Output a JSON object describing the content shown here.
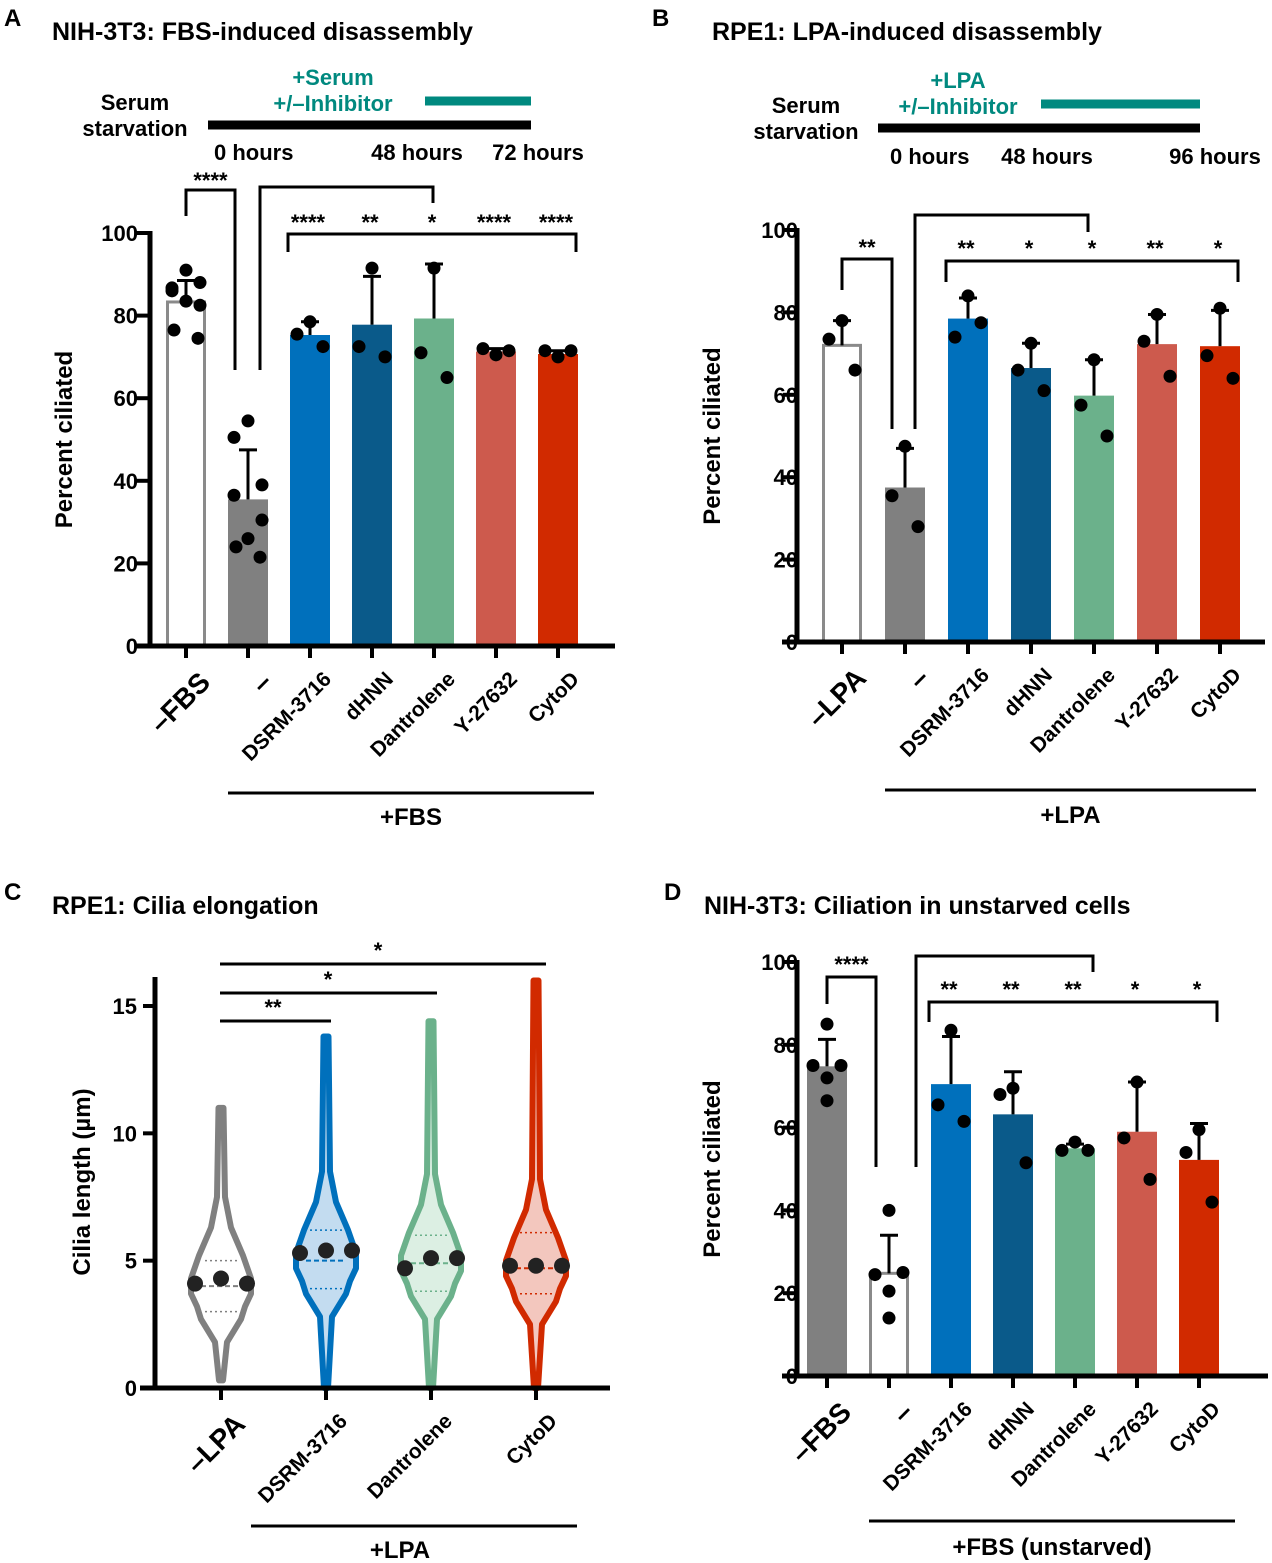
{
  "figure": {
    "colors": {
      "white_bar_edge": "#8a8a8a",
      "gray": "#808080",
      "blue": "#0070bc",
      "darkblue": "#0a5a8a",
      "green": "#6bb18b",
      "salmon": "#cd5a4d",
      "red": "#d12a00",
      "teal": "#00897f",
      "black": "#000000",
      "dot": "#000000"
    }
  },
  "chart_data": [
    {
      "panel": "A",
      "type": "bar",
      "title": "NIH-3T3: FBS-induced disassembly",
      "ylabel": "Percent ciliated",
      "ylim": [
        0,
        100
      ],
      "yticks": [
        0,
        20,
        40,
        60,
        80,
        100
      ],
      "categories": [
        "–FBS",
        "–",
        "DSRM-3716",
        "dHNN",
        "Dantrolene",
        "Y-27632",
        "CytoD"
      ],
      "group_label": "+FBS",
      "group_span": [
        1,
        6
      ],
      "bar_styles": [
        "white",
        "gray",
        "blue",
        "darkblue",
        "green",
        "salmon",
        "red"
      ],
      "means": [
        83.3,
        35.5,
        75.3,
        77.8,
        79.3,
        71.3,
        70.7
      ],
      "sd_top": [
        88.5,
        47.5,
        78.5,
        89.5,
        92.5,
        72.0,
        71.5
      ],
      "points": [
        [
          91,
          86.7,
          88,
          86,
          82.5,
          83.5,
          76.5,
          74.5
        ],
        [
          54.5,
          50.5,
          39,
          36.5,
          30.5,
          26,
          24,
          21.5
        ],
        [
          78.5,
          75.5,
          72.5
        ],
        [
          91.5,
          72.5,
          70
        ],
        [
          91.5,
          71,
          65
        ],
        [
          70.5,
          72,
          71.5
        ],
        [
          70,
          71.5,
          71.5
        ]
      ],
      "timeline": {
        "left_label": [
          "Serum",
          "starvation"
        ],
        "treatment_label": [
          "+Serum",
          "+/–Inhibitor"
        ],
        "time_labels": [
          "0 hours",
          "48 hours",
          "72 hours"
        ]
      },
      "significance": {
        "pair": {
          "from": 0,
          "to": 1,
          "label": "****"
        },
        "ref_bracket_from": 1,
        "group_bracket": {
          "from": 2,
          "to": 6
        },
        "labels": [
          "****",
          "**",
          "*",
          "****",
          "****"
        ]
      }
    },
    {
      "panel": "B",
      "type": "bar",
      "title": "RPE1: LPA-induced disassembly",
      "ylabel": "Percent ciliated",
      "ylim": [
        0,
        100
      ],
      "yticks": [
        0,
        20,
        40,
        60,
        80,
        100
      ],
      "categories": [
        "–LPA",
        "–",
        "DSRM-3716",
        "dHNN",
        "Dantrolene",
        "Y-27632",
        "CytoD"
      ],
      "group_label": "+LPA",
      "group_span": [
        1,
        6
      ],
      "bar_styles": [
        "white",
        "gray",
        "blue",
        "darkblue",
        "green",
        "salmon",
        "red"
      ],
      "means": [
        72.0,
        37.5,
        78.5,
        66.5,
        59.8,
        72.3,
        71.8
      ],
      "sd_top": [
        78.0,
        47.0,
        83.5,
        72.5,
        68.5,
        79.5,
        80.5
      ],
      "points": [
        [
          78,
          73.5,
          66
        ],
        [
          47.5,
          35.5,
          28
        ],
        [
          84,
          74,
          77.5
        ],
        [
          72.5,
          66,
          61
        ],
        [
          68.5,
          57.5,
          50
        ],
        [
          79.5,
          73,
          64.5
        ],
        [
          81,
          69.5,
          64
        ]
      ],
      "timeline": {
        "left_label": [
          "Serum",
          "starvation"
        ],
        "treatment_label": [
          "+LPA",
          "+/–Inhibitor"
        ],
        "time_labels": [
          "0 hours",
          "48 hours",
          "96 hours"
        ]
      },
      "significance": {
        "pair": {
          "from": 0,
          "to": 1,
          "label": "**"
        },
        "ref_bracket_from": 1,
        "group_bracket": {
          "from": 2,
          "to": 6
        },
        "labels": [
          "**",
          "*",
          "*",
          "**",
          "*"
        ]
      }
    },
    {
      "panel": "C",
      "type": "violin",
      "title": "RPE1: Cilia elongation",
      "ylabel": "Cilia length (µm)",
      "ylim": [
        0,
        16
      ],
      "yticks": [
        0,
        5,
        10,
        15
      ],
      "categories": [
        "–LPA",
        "DSRM-3716",
        "Dantrolene",
        "CytoD"
      ],
      "group_label": "+LPA",
      "group_span": [
        1,
        3
      ],
      "styles": [
        "gray",
        "blue",
        "green",
        "red"
      ],
      "fills": [
        "#ffffff",
        "#c3dcf0",
        "#dcefe3",
        "#f3c7be"
      ],
      "median": [
        4.0,
        5.0,
        4.9,
        4.7
      ],
      "quartiles": [
        [
          3.0,
          5.0
        ],
        [
          3.9,
          6.2
        ],
        [
          3.8,
          6.0
        ],
        [
          3.7,
          6.1
        ]
      ],
      "range": [
        [
          0.3,
          11.0
        ],
        [
          0,
          13.8
        ],
        [
          0,
          14.4
        ],
        [
          0,
          16.0
        ]
      ],
      "replicate_means": [
        [
          4.1,
          4.3,
          4.1
        ],
        [
          5.3,
          5.4,
          5.4
        ],
        [
          4.7,
          5.1,
          5.1
        ],
        [
          4.8,
          4.8,
          4.8
        ]
      ],
      "significance": [
        {
          "from": 0,
          "to": 1,
          "label": "**"
        },
        {
          "from": 0,
          "to": 2,
          "label": "*"
        },
        {
          "from": 0,
          "to": 3,
          "label": "*"
        }
      ]
    },
    {
      "panel": "D",
      "type": "bar",
      "title": "NIH-3T3: Ciliation in unstarved cells",
      "ylabel": "Percent ciliated",
      "ylim": [
        0,
        100
      ],
      "yticks": [
        0,
        20,
        40,
        60,
        80,
        100
      ],
      "categories": [
        "–FBS",
        "–",
        "DSRM-3716",
        "dHNN",
        "Dantrolene",
        "Y-27632",
        "CytoD"
      ],
      "group_label": "+FBS (unstarved)",
      "group_span": [
        1,
        6
      ],
      "bar_styles": [
        "gray",
        "white",
        "blue",
        "darkblue",
        "green",
        "salmon",
        "red"
      ],
      "means": [
        74.8,
        24.8,
        70.5,
        63.2,
        55.0,
        59.0,
        52.2
      ],
      "sd_top": [
        81.3,
        34.0,
        82.0,
        73.5,
        56.0,
        71.0,
        61.0
      ],
      "points": [
        [
          85,
          75,
          75,
          72,
          66.5
        ],
        [
          40,
          24.5,
          25,
          20.5,
          14
        ],
        [
          83.5,
          65.5,
          61.5
        ],
        [
          69.5,
          68,
          51.5
        ],
        [
          56.5,
          54.5,
          54.5
        ],
        [
          71,
          57.5,
          47.5
        ],
        [
          59.5,
          54,
          42
        ]
      ],
      "significance": {
        "pair": {
          "from": 0,
          "to": 1,
          "label": "****"
        },
        "ref_bracket_from": 1,
        "group_bracket": {
          "from": 2,
          "to": 6
        },
        "labels": [
          "**",
          "**",
          "**",
          "*",
          "*"
        ]
      }
    }
  ],
  "panels": {
    "A": {
      "letter": "A",
      "title": "NIH-3T3: FBS-induced disassembly"
    },
    "B": {
      "letter": "B",
      "title": "RPE1: LPA-induced disassembly"
    },
    "C": {
      "letter": "C",
      "title": "RPE1: Cilia elongation"
    },
    "D": {
      "letter": "D",
      "title": "NIH-3T3: Ciliation in unstarved cells"
    }
  }
}
